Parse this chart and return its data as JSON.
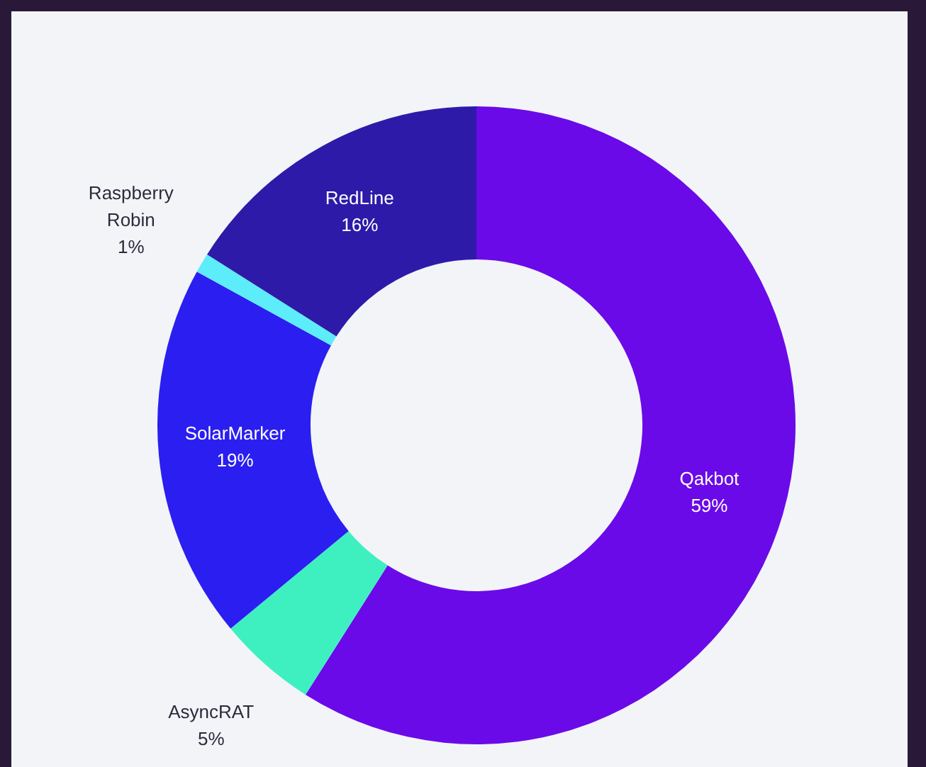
{
  "chart_data": {
    "type": "donut",
    "categories": [
      "Qakbot",
      "AsyncRAT",
      "SolarMarker",
      "Raspberry Robin",
      "RedLine"
    ],
    "values": [
      59,
      5,
      19,
      1,
      16
    ],
    "value_labels": [
      "59%",
      "5%",
      "19%",
      "1%",
      "16%"
    ],
    "colors": [
      "#6b0ae8",
      "#3ef0c0",
      "#2a1ff0",
      "#5cecfa",
      "#2e1aa8"
    ],
    "legend": false
  }
}
